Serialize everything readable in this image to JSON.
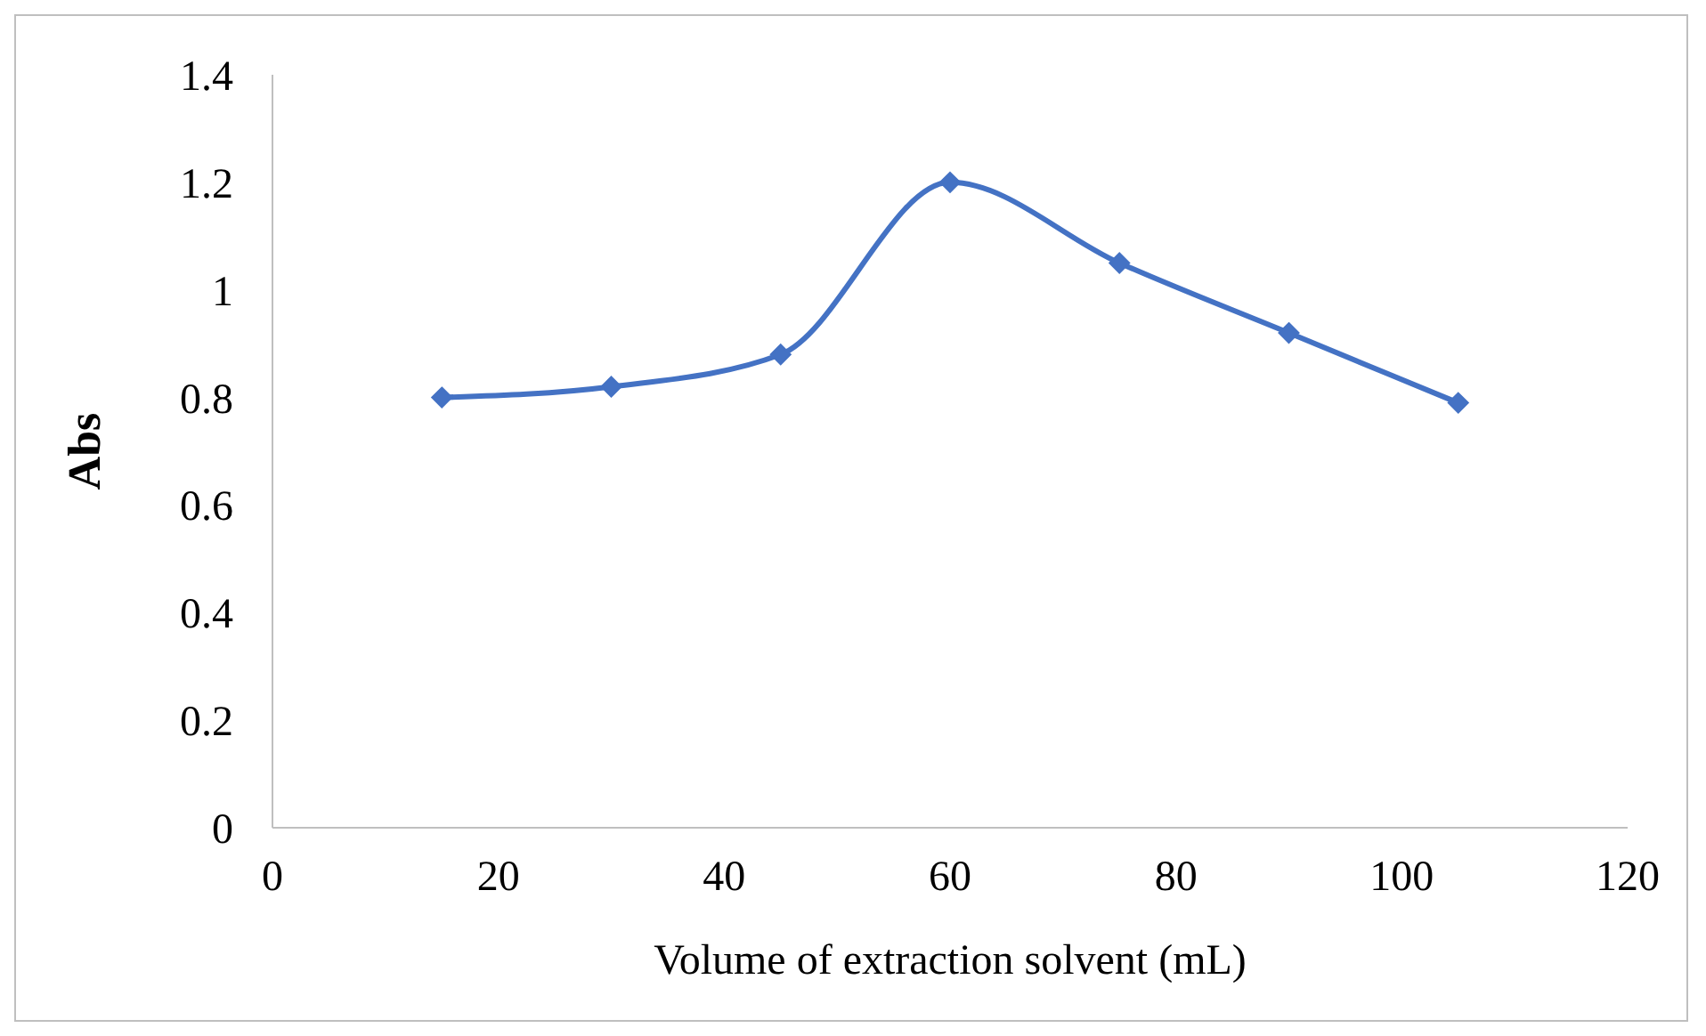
{
  "chart_data": {
    "type": "line",
    "xlabel": "Volume of extraction solvent (mL)",
    "ylabel": "Abs",
    "x": [
      15,
      30,
      45,
      60,
      75,
      90,
      105
    ],
    "series": [
      {
        "color": "#4472c4",
        "values": [
          0.8,
          0.82,
          0.88,
          1.2,
          1.05,
          0.92,
          0.79
        ]
      }
    ],
    "xlim": [
      0,
      120
    ],
    "xticks": [
      0,
      20,
      40,
      60,
      80,
      100,
      120
    ],
    "ylim": [
      0,
      1.4
    ],
    "yticks": [
      0,
      0.2,
      0.4,
      0.6,
      0.8,
      1,
      1.2,
      1.4
    ],
    "grid": false,
    "legend": false,
    "marker": "diamond",
    "line_style": "solid"
  }
}
